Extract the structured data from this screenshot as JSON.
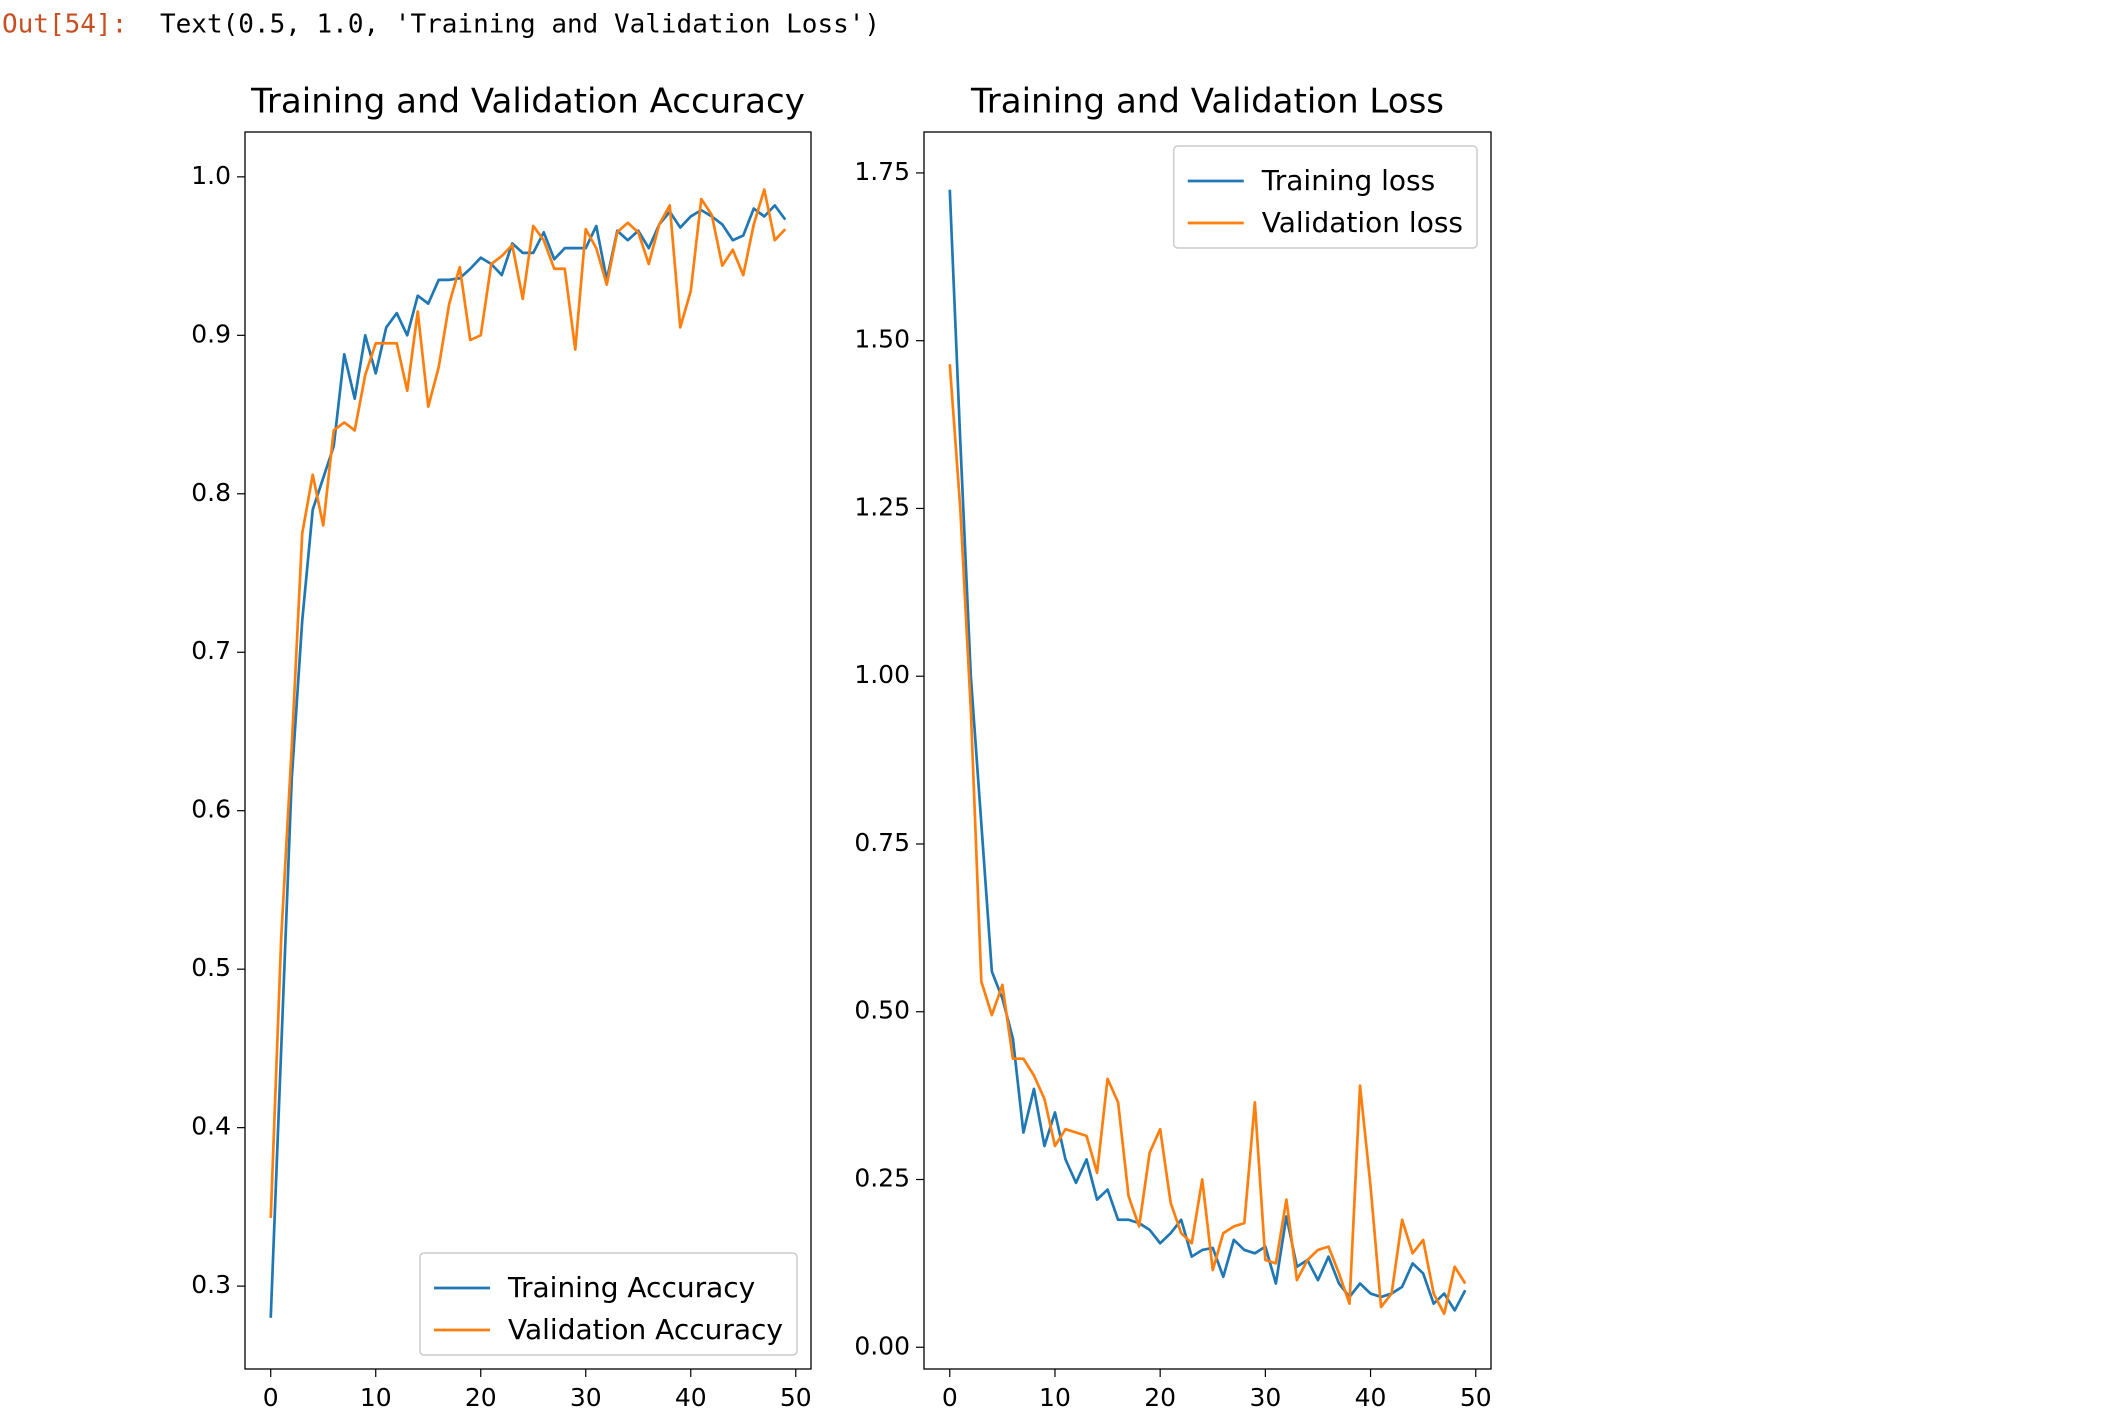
{
  "output": {
    "prompt": "Out[54]:",
    "text": "Text(0.5, 1.0, 'Training and Validation Loss')"
  },
  "chart_data": [
    {
      "type": "line",
      "title": "Training and Validation Accuracy",
      "x": [
        0,
        1,
        2,
        3,
        4,
        5,
        6,
        7,
        8,
        9,
        10,
        11,
        12,
        13,
        14,
        15,
        16,
        17,
        18,
        19,
        20,
        21,
        22,
        23,
        24,
        25,
        26,
        27,
        28,
        29,
        30,
        31,
        32,
        33,
        34,
        35,
        36,
        37,
        38,
        39,
        40,
        41,
        42,
        43,
        44,
        45,
        46,
        47,
        48,
        49
      ],
      "series": [
        {
          "name": "Training Accuracy",
          "color": "#1f77b4",
          "values": [
            0.28,
            0.45,
            0.62,
            0.72,
            0.79,
            0.81,
            0.83,
            0.888,
            0.86,
            0.9,
            0.876,
            0.905,
            0.914,
            0.9,
            0.925,
            0.92,
            0.935,
            0.935,
            0.936,
            0.942,
            0.949,
            0.945,
            0.938,
            0.958,
            0.952,
            0.952,
            0.965,
            0.948,
            0.955,
            0.955,
            0.955,
            0.969,
            0.935,
            0.966,
            0.96,
            0.966,
            0.955,
            0.97,
            0.978,
            0.968,
            0.975,
            0.979,
            0.975,
            0.97,
            0.96,
            0.963,
            0.98,
            0.975,
            0.982,
            0.973
          ]
        },
        {
          "name": "Validation Accuracy",
          "color": "#ff7f0e",
          "values": [
            0.343,
            0.52,
            0.64,
            0.775,
            0.812,
            0.78,
            0.84,
            0.845,
            0.84,
            0.875,
            0.895,
            0.895,
            0.895,
            0.865,
            0.915,
            0.855,
            0.88,
            0.92,
            0.943,
            0.897,
            0.9,
            0.945,
            0.95,
            0.957,
            0.923,
            0.969,
            0.96,
            0.942,
            0.942,
            0.891,
            0.967,
            0.955,
            0.932,
            0.965,
            0.971,
            0.965,
            0.945,
            0.97,
            0.982,
            0.905,
            0.928,
            0.986,
            0.976,
            0.944,
            0.954,
            0.938,
            0.97,
            0.992,
            0.96,
            0.967
          ]
        }
      ],
      "xlim": [
        -2.45,
        51.45
      ],
      "xticks": [
        0,
        10,
        20,
        30,
        40,
        50
      ],
      "ylim": [
        0.2477,
        1.0283
      ],
      "yticks": [
        0.3,
        0.4,
        0.5,
        0.6,
        0.7,
        0.8,
        0.9,
        {
          "value": 1,
          "label": "1.0"
        }
      ],
      "grid": false,
      "legend": "lower right"
    },
    {
      "type": "line",
      "title": "Training and Validation Loss",
      "x": [
        0,
        1,
        2,
        3,
        4,
        5,
        6,
        7,
        8,
        9,
        10,
        11,
        12,
        13,
        14,
        15,
        16,
        17,
        18,
        19,
        20,
        21,
        22,
        23,
        24,
        25,
        26,
        27,
        28,
        29,
        30,
        31,
        32,
        33,
        34,
        35,
        36,
        37,
        38,
        39,
        40,
        41,
        42,
        43,
        44,
        45,
        46,
        47,
        48,
        49
      ],
      "series": [
        {
          "name": "Training loss",
          "color": "#1f77b4",
          "values": [
            1.725,
            1.35,
            1.0,
            0.78,
            0.56,
            0.52,
            0.46,
            0.32,
            0.385,
            0.3,
            0.35,
            0.28,
            0.245,
            0.28,
            0.22,
            0.235,
            0.19,
            0.19,
            0.185,
            0.175,
            0.155,
            0.17,
            0.19,
            0.135,
            0.145,
            0.148,
            0.105,
            0.16,
            0.145,
            0.14,
            0.15,
            0.095,
            0.195,
            0.12,
            0.13,
            0.1,
            0.135,
            0.095,
            0.075,
            0.095,
            0.08,
            0.075,
            0.08,
            0.09,
            0.125,
            0.11,
            0.065,
            0.08,
            0.055,
            0.085
          ]
        },
        {
          "name": "Validation loss",
          "color": "#ff7f0e",
          "values": [
            1.465,
            1.25,
            0.95,
            0.545,
            0.495,
            0.54,
            0.43,
            0.43,
            0.405,
            0.37,
            0.3,
            0.325,
            0.32,
            0.315,
            0.26,
            0.4,
            0.365,
            0.225,
            0.18,
            0.29,
            0.325,
            0.215,
            0.17,
            0.155,
            0.25,
            0.115,
            0.17,
            0.18,
            0.185,
            0.365,
            0.13,
            0.125,
            0.22,
            0.1,
            0.13,
            0.145,
            0.15,
            0.11,
            0.065,
            0.39,
            0.24,
            0.06,
            0.08,
            0.19,
            0.14,
            0.16,
            0.08,
            0.05,
            0.12,
            0.095
          ]
        }
      ],
      "xlim": [
        -2.45,
        51.45
      ],
      "xticks": [
        0,
        10,
        20,
        30,
        40,
        50
      ],
      "ylim": [
        -0.0324,
        1.811
      ],
      "yticks": [
        {
          "value": 0,
          "label": "0.00"
        },
        0.25,
        {
          "value": 0.5,
          "label": "0.50"
        },
        0.75,
        {
          "value": 1,
          "label": "1.00"
        },
        1.25,
        {
          "value": 1.5,
          "label": "1.50"
        },
        1.75
      ],
      "grid": false,
      "legend": "upper right"
    }
  ]
}
